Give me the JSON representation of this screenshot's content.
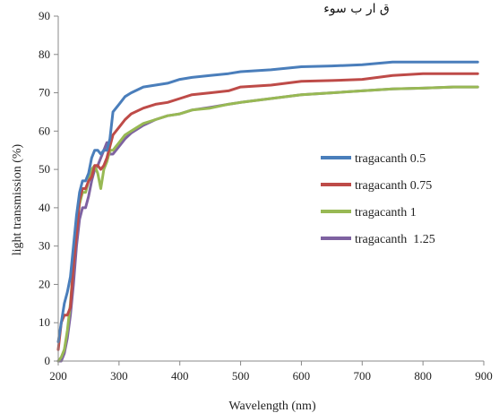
{
  "top_text": "ق ار ب سوء",
  "chart_data": {
    "type": "line",
    "title": "",
    "xlabel": "Wavelength (nm)",
    "ylabel": "light transmission (%)",
    "xlim": [
      200,
      900
    ],
    "ylim": [
      0,
      90
    ],
    "xticks": [
      200,
      300,
      400,
      500,
      600,
      700,
      800,
      900
    ],
    "yticks": [
      0,
      10,
      20,
      30,
      40,
      50,
      60,
      70,
      80,
      90
    ],
    "grid": false,
    "legend_position": "right",
    "series": [
      {
        "name": "tragacanth 0.5",
        "color": "#4a7ebb",
        "x": [
          200,
          205,
          210,
          215,
          220,
          225,
          230,
          235,
          240,
          245,
          250,
          255,
          260,
          265,
          270,
          275,
          280,
          285,
          290,
          300,
          310,
          320,
          340,
          360,
          380,
          400,
          420,
          450,
          480,
          500,
          550,
          600,
          650,
          700,
          750,
          800,
          850,
          890
        ],
        "y": [
          5,
          10,
          15,
          18,
          22,
          30,
          38,
          44,
          47,
          47,
          49,
          53,
          55,
          55,
          54,
          55,
          55,
          58,
          65,
          67,
          69,
          70,
          71.5,
          72,
          72.5,
          73.5,
          74,
          74.5,
          75,
          75.5,
          76,
          76.8,
          77,
          77.3,
          78,
          78,
          78,
          78
        ]
      },
      {
        "name": "tragacanth 0.75",
        "color": "#be4b48",
        "x": [
          200,
          205,
          210,
          215,
          220,
          225,
          230,
          235,
          240,
          245,
          250,
          255,
          260,
          265,
          270,
          275,
          280,
          285,
          290,
          300,
          310,
          320,
          340,
          360,
          380,
          400,
          420,
          450,
          480,
          500,
          550,
          600,
          650,
          700,
          750,
          800,
          850,
          890
        ],
        "y": [
          3,
          10,
          12,
          12,
          14,
          25,
          33,
          42,
          45,
          45,
          47,
          48,
          51,
          51,
          50,
          51,
          53,
          56,
          59,
          61,
          63,
          64.5,
          66,
          67,
          67.5,
          68.5,
          69.5,
          70,
          70.5,
          71.5,
          72,
          73,
          73.2,
          73.5,
          74.5,
          75,
          75,
          75
        ]
      },
      {
        "name": "tragacanth 1",
        "color": "#98b954",
        "x": [
          200,
          205,
          210,
          215,
          220,
          225,
          230,
          235,
          240,
          245,
          250,
          255,
          260,
          265,
          270,
          275,
          280,
          285,
          290,
          300,
          310,
          320,
          340,
          360,
          380,
          400,
          420,
          450,
          480,
          500,
          550,
          600,
          650,
          700,
          750,
          800,
          850,
          890
        ],
        "y": [
          0,
          1,
          3,
          8,
          15,
          25,
          35,
          41,
          44,
          44,
          47,
          50,
          51,
          49,
          45,
          50,
          52,
          55,
          55,
          57,
          59,
          60,
          62,
          63,
          64,
          64.5,
          65.5,
          66,
          67,
          67.5,
          68.5,
          69.5,
          70,
          70.5,
          71,
          71.2,
          71.5,
          71.5
        ]
      },
      {
        "name": "tragacanth  1.25",
        "color": "#7e62a1",
        "x": [
          200,
          205,
          210,
          215,
          220,
          225,
          230,
          235,
          240,
          245,
          250,
          255,
          260,
          265,
          270,
          275,
          280,
          285,
          290,
          300,
          310,
          320,
          340,
          360,
          380,
          400,
          420,
          450,
          480,
          500,
          550,
          600,
          650,
          700,
          750,
          800,
          850,
          890
        ],
        "y": [
          0,
          0,
          2,
          6,
          12,
          20,
          30,
          37,
          40,
          40,
          43,
          47,
          50,
          51,
          53,
          55,
          57,
          54,
          54,
          56,
          58,
          59.5,
          61.5,
          63,
          64,
          64.5,
          65.5,
          66.2,
          67,
          67.5,
          68.5,
          69.5,
          70,
          70.5,
          71,
          71.2,
          71.5,
          71.5
        ]
      }
    ]
  }
}
